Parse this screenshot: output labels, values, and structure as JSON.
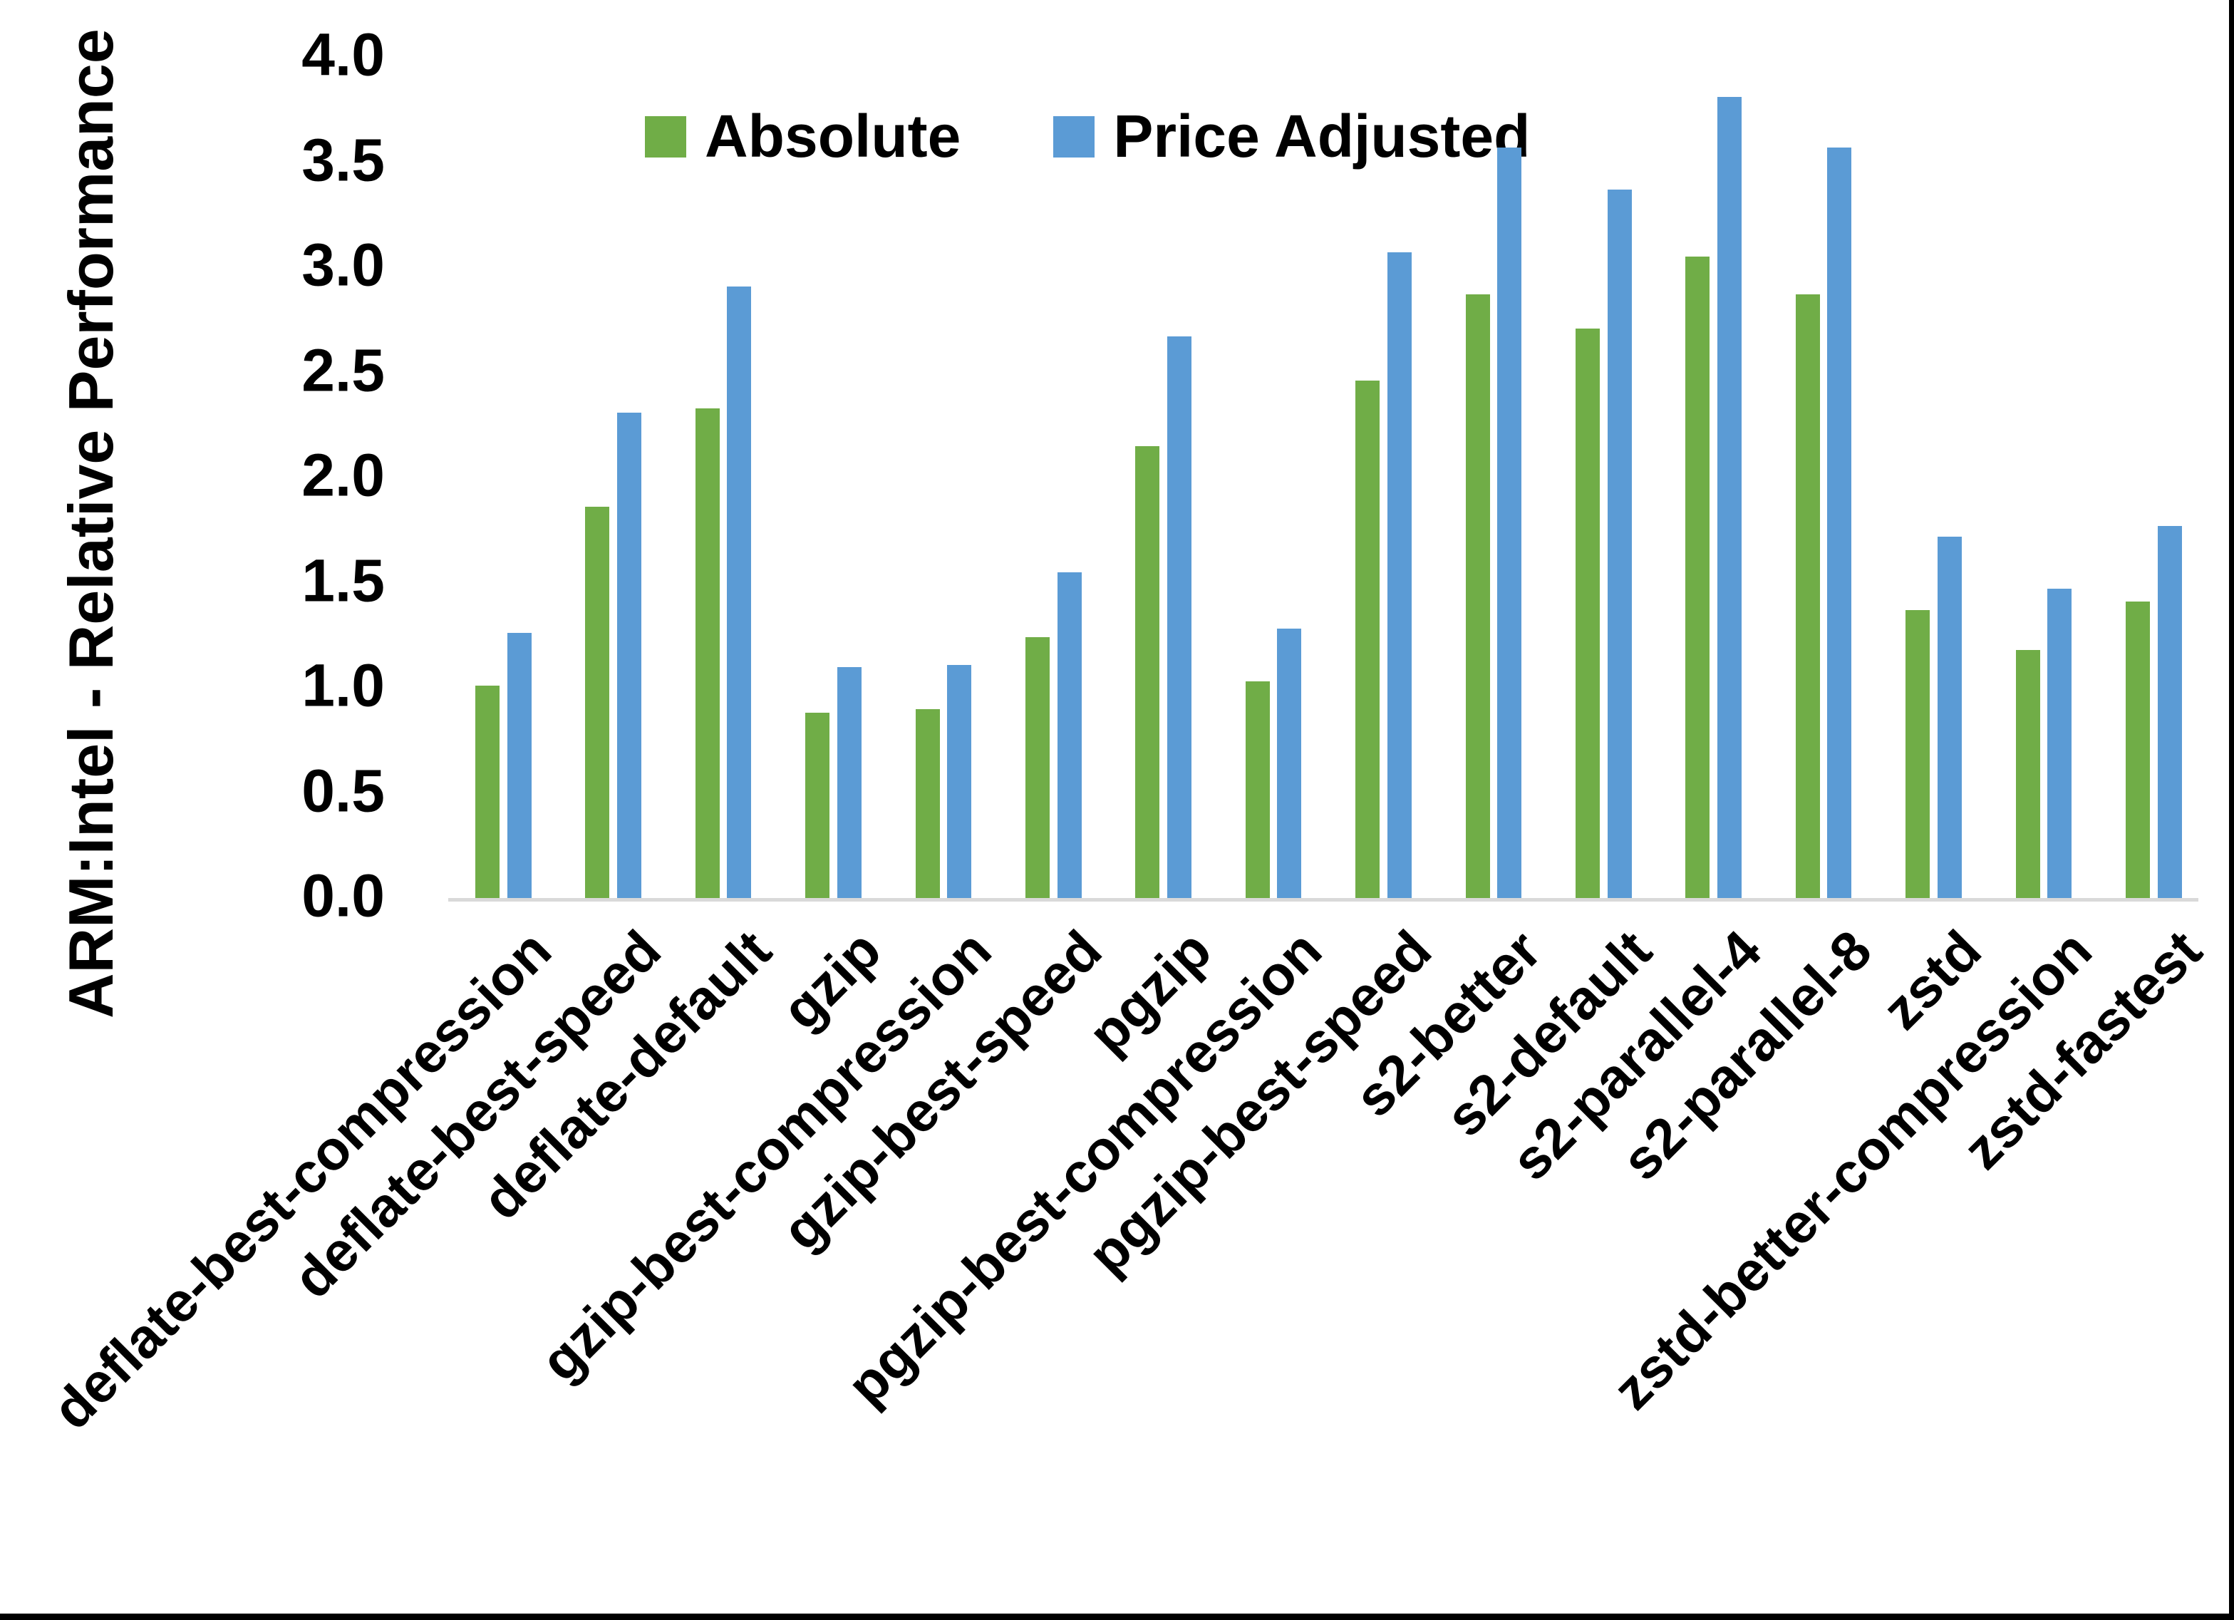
{
  "chart_data": {
    "type": "bar",
    "title": "",
    "xlabel": "",
    "ylabel": "ARM:Intel - Relative Performance",
    "ylim": [
      0.0,
      4.0
    ],
    "y_tick_step": 0.5,
    "y_ticks": [
      "0.0",
      "0.5",
      "1.0",
      "1.5",
      "2.0",
      "2.5",
      "3.0",
      "3.5",
      "4.0"
    ],
    "grid": false,
    "legend_position": "top-center",
    "axis_line_color": "#d9d9d9",
    "categories": [
      "deflate-best-compression",
      "deflate-best-speed",
      "deflate-default",
      "gzip",
      "gzip-best-compression",
      "gzip-best-speed",
      "pgzip",
      "pgzip-best-compression",
      "pgzip-best-speed",
      "s2-better",
      "s2-default",
      "s2-parallel-4",
      "s2-parallel-8",
      "zstd",
      "zstd-better-compression",
      "zstd-fastest"
    ],
    "series": [
      {
        "name": "Absolute",
        "color": "#70AD47",
        "values": [
          1.01,
          1.86,
          2.33,
          0.88,
          0.9,
          1.24,
          2.15,
          1.03,
          2.46,
          2.87,
          2.71,
          3.05,
          2.87,
          1.37,
          1.18,
          1.41
        ]
      },
      {
        "name": "Price Adjusted",
        "color": "#5B9BD5",
        "values": [
          1.26,
          2.31,
          2.91,
          1.1,
          1.11,
          1.55,
          2.67,
          1.28,
          3.07,
          3.57,
          3.37,
          3.81,
          3.57,
          1.72,
          1.47,
          1.77
        ]
      }
    ]
  },
  "page": {
    "background_color": "#ffffff",
    "frame_border_color": "#000000"
  }
}
